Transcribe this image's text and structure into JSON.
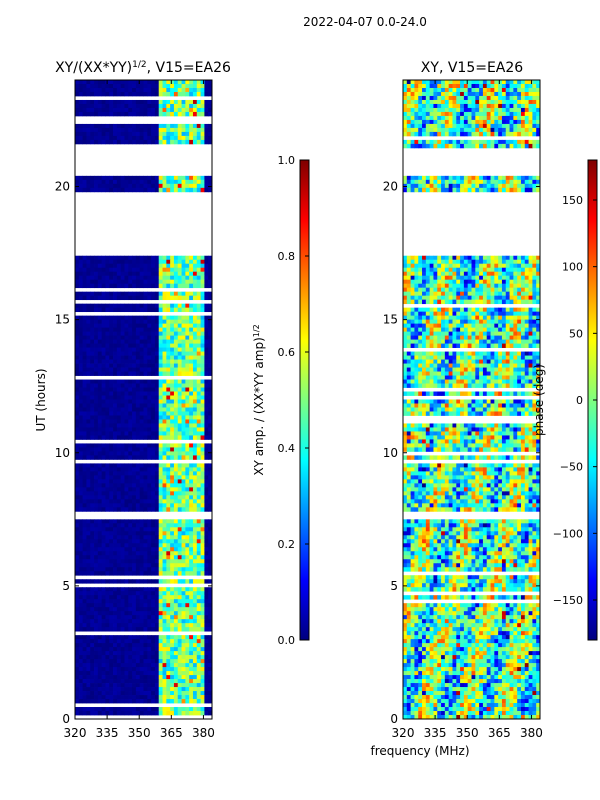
{
  "suptitle": "2022-04-07 0.0-24.0",
  "chart_data": [
    {
      "type": "heatmap",
      "title_main": "XY/(XX*YY)",
      "title_sup": "1/2",
      "title_suffix": ", V15=EA26",
      "xlabel": "",
      "ylabel": "UT (hours)",
      "xlim": [
        320,
        384
      ],
      "ylim": [
        0,
        24
      ],
      "xticks": [
        "320",
        "335",
        "350",
        "365",
        "380"
      ],
      "xtick_values": [
        320,
        335,
        350,
        365,
        380
      ],
      "yticks": [
        "0",
        "5",
        "10",
        "15",
        "20"
      ],
      "ytick_values": [
        0,
        5,
        10,
        15,
        20
      ],
      "colorbar": {
        "label_main": "XY amp. / (XX*YY amp)",
        "label_sup": "1/2",
        "range": [
          0.0,
          1.0
        ],
        "ticks": [
          "0.0",
          "0.2",
          "0.4",
          "0.6",
          "0.8",
          "1.0"
        ],
        "tick_values": [
          0.0,
          0.2,
          0.4,
          0.6,
          0.8,
          1.0
        ],
        "colormap": "jet"
      },
      "data_gaps_hours": [
        [
          17.45,
          19.85
        ],
        [
          20.4,
          21.4
        ],
        [
          22.4,
          22.6
        ]
      ],
      "bright_channel_band_mhz": [
        360,
        381
      ],
      "typical_value_outside_band": 0.0,
      "typical_value_in_band": 0.45
    },
    {
      "type": "heatmap",
      "title": "XY, V15=EA26",
      "xlabel": "frequency (MHz)",
      "ylabel": "",
      "xlim": [
        320,
        384
      ],
      "ylim": [
        0,
        24
      ],
      "xticks": [
        "320",
        "335",
        "350",
        "365",
        "380"
      ],
      "xtick_values": [
        320,
        335,
        350,
        365,
        380
      ],
      "yticks": [
        "0",
        "5",
        "10",
        "15",
        "20"
      ],
      "ytick_values": [
        0,
        5,
        10,
        15,
        20
      ],
      "colorbar": {
        "label": "phase (deg)",
        "range": [
          -180,
          180
        ],
        "ticks": [
          "−150",
          "−100",
          "−50",
          "0",
          "50",
          "100",
          "150"
        ],
        "tick_values": [
          -150,
          -100,
          -50,
          0,
          50,
          100,
          150
        ],
        "colormap": "jet"
      },
      "data_gaps_hours": [
        [
          17.45,
          19.85
        ],
        [
          20.4,
          21.4
        ]
      ],
      "typical_value": -20
    }
  ]
}
